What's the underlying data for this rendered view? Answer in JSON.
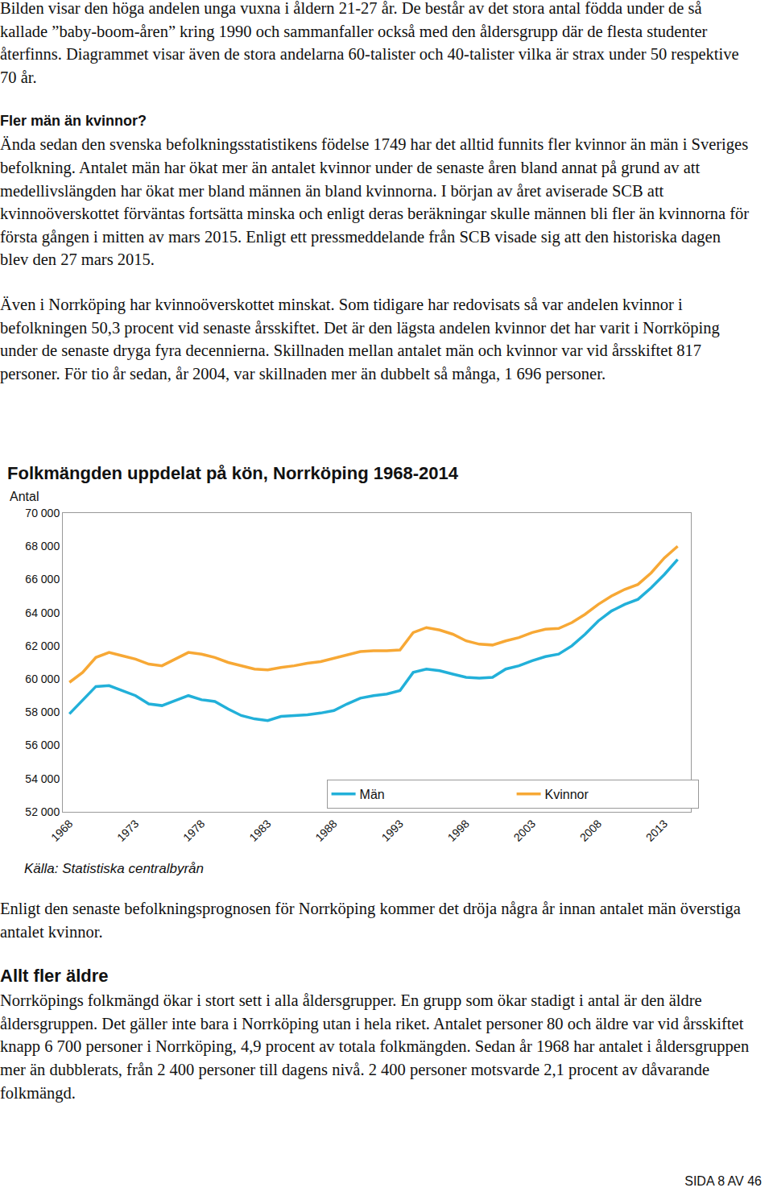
{
  "document": {
    "before_chart": [
      {
        "kind": "p",
        "text": "Bilden visar den höga andelen unga vuxna i åldern 21-27 år. De består av det stora antal födda under de så kallade ”baby-boom-åren” kring 1990 och sammanfaller också med den åldersgrupp där de flesta studenter återfinns. Diagrammet visar även de stora andelarna 60-talister och 40-talister vilka är strax under 50 respektive 70 år."
      },
      {
        "kind": "h3",
        "text": "Fler män än kvinnor?"
      },
      {
        "kind": "p",
        "text": "Ända sedan den svenska befolkningsstatistikens födelse 1749 har det alltid funnits fler kvinnor än män i Sveriges befolkning. Antalet män har ökat mer än antalet kvinnor under de senaste åren bland annat på grund av att medellivslängden har ökat mer bland männen än bland kvinnorna. I början av året aviserade SCB att kvinnoöverskottet förväntas fortsätta minska och enligt deras beräkningar skulle männen bli fler än kvinnorna för första gången i mitten av mars 2015. Enligt ett pressmeddelande från SCB visade sig att den historiska dagen blev den 27 mars 2015."
      },
      {
        "kind": "p",
        "text": "Även i Norrköping har kvinnoöverskottet minskat. Som tidigare har redovisats så var andelen kvinnor i befolkningen 50,3 procent vid senaste årsskiftet. Det är den lägsta andelen kvinnor det har varit i Norrköping under de senaste dryga fyra decennierna. Skillnaden mellan antalet män och kvinnor var vid årsskiftet 817 personer. För tio år sedan, år 2004, var skillnaden mer än dubbelt så många, 1 696 personer."
      }
    ],
    "after_chart": [
      {
        "kind": "p",
        "text": "Enligt den senaste befolkningsprognosen för Norrköping kommer det dröja några år innan antalet män överstiga antalet kvinnor."
      },
      {
        "kind": "h2",
        "text": "Allt fler äldre"
      },
      {
        "kind": "p",
        "text": "Norrköpings folkmängd ökar i stort sett i alla åldersgrupper. En grupp som ökar stadigt i antal är den äldre åldersgruppen. Det gäller inte bara i Norrköping utan i hela riket. Antalet personer 80 och äldre var vid årsskiftet knapp 6 700 personer i Norrköping, 4,9 procent av totala folkmängden. Sedan år 1968 har antalet i åldersgruppen mer än dubblerats, från 2 400 personer till dagens nivå. 2 400 personer motsvarde 2,1 procent av dåvarande folkmängd."
      }
    ],
    "footer": "SIDA 8 AV 46"
  },
  "chart_data": {
    "type": "line",
    "title": "Folkmängden uppdelat på kön, Norrköping 1968-2014",
    "y_label": "Antal",
    "source": "Källa: Statistiska centralbyrån",
    "x": [
      1968,
      1969,
      1970,
      1971,
      1972,
      1973,
      1974,
      1975,
      1976,
      1977,
      1978,
      1979,
      1980,
      1981,
      1982,
      1983,
      1984,
      1985,
      1986,
      1987,
      1988,
      1989,
      1990,
      1991,
      1992,
      1993,
      1994,
      1995,
      1996,
      1997,
      1998,
      1999,
      2000,
      2001,
      2002,
      2003,
      2004,
      2005,
      2006,
      2007,
      2008,
      2009,
      2010,
      2011,
      2012,
      2013,
      2014
    ],
    "series": [
      {
        "name": "Män",
        "color": "#22b0d9",
        "values": [
          57900,
          58700,
          59550,
          59600,
          59300,
          59000,
          58500,
          58400,
          58700,
          59000,
          58750,
          58650,
          58200,
          57800,
          57600,
          57500,
          57750,
          57800,
          57850,
          57950,
          58100,
          58500,
          58850,
          59000,
          59100,
          59300,
          60400,
          60600,
          60500,
          60300,
          60100,
          60050,
          60100,
          60600,
          60800,
          61100,
          61350,
          61500,
          62000,
          62700,
          63500,
          64100,
          64500,
          64800,
          65500,
          66300,
          67200
        ]
      },
      {
        "name": "Kvinnor",
        "color": "#f7a835",
        "values": [
          59800,
          60400,
          61300,
          61600,
          61400,
          61200,
          60900,
          60800,
          61200,
          61600,
          61500,
          61300,
          61000,
          60800,
          60600,
          60550,
          60700,
          60800,
          60950,
          61050,
          61250,
          61450,
          61650,
          61700,
          61700,
          61750,
          62800,
          63100,
          62950,
          62700,
          62300,
          62100,
          62050,
          62300,
          62500,
          62800,
          63000,
          63050,
          63400,
          63900,
          64500,
          65000,
          65400,
          65700,
          66400,
          67300,
          68000
        ]
      }
    ],
    "xlim": [
      1967.5,
      2015
    ],
    "xticks": [
      1968,
      1973,
      1978,
      1983,
      1988,
      1993,
      1998,
      2003,
      2008,
      2013
    ],
    "ylim": [
      52000,
      70000
    ],
    "yticks": [
      {
        "value": 52000,
        "label": "52 000"
      },
      {
        "value": 54000,
        "label": "54 000"
      },
      {
        "value": 56000,
        "label": "56 000"
      },
      {
        "value": 58000,
        "label": "58 000"
      },
      {
        "value": 60000,
        "label": "60 000"
      },
      {
        "value": 62000,
        "label": "62 000"
      },
      {
        "value": 64000,
        "label": "64 000"
      },
      {
        "value": 66000,
        "label": "66 000"
      },
      {
        "value": 68000,
        "label": "68 000"
      },
      {
        "value": 70000,
        "label": "70 000"
      }
    ],
    "grid": false,
    "legend": "lower right"
  }
}
